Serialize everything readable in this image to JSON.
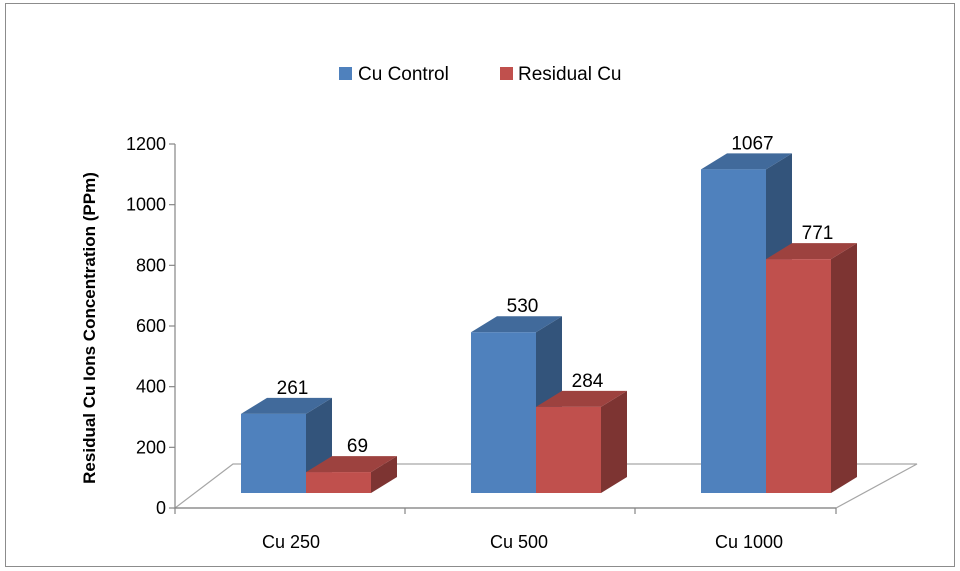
{
  "chart_data": {
    "type": "bar",
    "title": "",
    "xlabel": "",
    "ylabel": "Residual Cu Ions Concentration (PPm)",
    "categories": [
      "Cu 250",
      "Cu 500",
      "Cu 1000"
    ],
    "series": [
      {
        "name": "Cu Control",
        "values": [
          261,
          530,
          1067
        ],
        "color": "#4f81bd"
      },
      {
        "name": "Residual Cu",
        "values": [
          69,
          284,
          771
        ],
        "color": "#c0504d"
      }
    ],
    "ylim": [
      0,
      1200
    ],
    "yticks": [
      0,
      200,
      400,
      600,
      800,
      1000,
      1200
    ],
    "grid": false,
    "legend_position": "top",
    "style": "3d-clustered-column"
  }
}
